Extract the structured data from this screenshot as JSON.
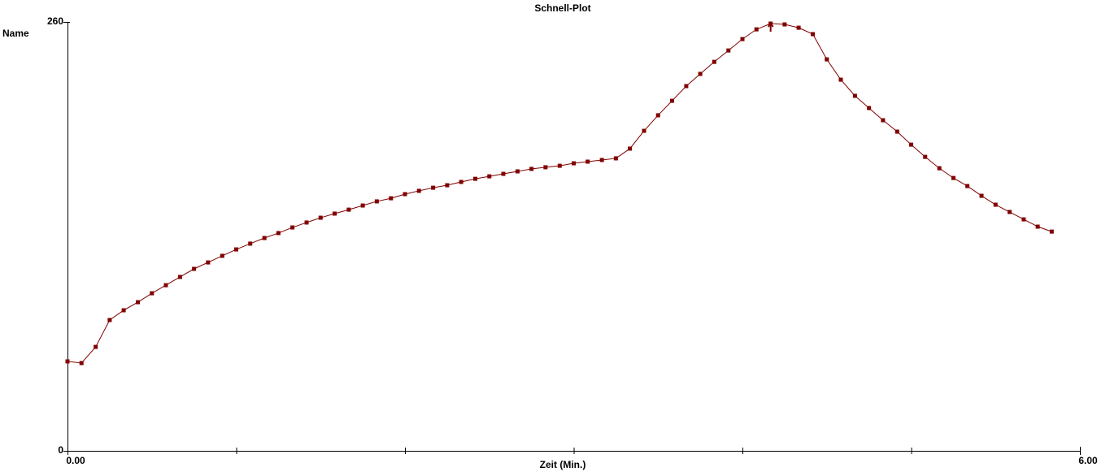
{
  "chart_data": {
    "type": "line",
    "title": "Schnell-Plot",
    "ylabel": "Name",
    "xlabel": "Zeit (Min.)",
    "xlim": [
      0,
      6
    ],
    "ylim": [
      0,
      260
    ],
    "xticks": [
      {
        "value": 0,
        "label": "0.00"
      },
      {
        "value": 6,
        "label": "6.00"
      }
    ],
    "xminorticks": [
      1,
      2,
      3,
      4,
      5
    ],
    "yticks": [
      0,
      260
    ],
    "x": [
      0,
      0.083,
      0.167,
      0.25,
      0.333,
      0.417,
      0.5,
      0.583,
      0.667,
      0.75,
      0.833,
      0.917,
      1,
      1.083,
      1.167,
      1.25,
      1.333,
      1.417,
      1.5,
      1.583,
      1.667,
      1.75,
      1.833,
      1.917,
      2,
      2.083,
      2.167,
      2.25,
      2.333,
      2.417,
      2.5,
      2.583,
      2.667,
      2.75,
      2.833,
      2.917,
      3,
      3.083,
      3.167,
      3.25,
      3.333,
      3.417,
      3.5,
      3.583,
      3.667,
      3.75,
      3.833,
      3.917,
      4,
      4.083,
      4.167,
      4.25,
      4.333,
      4.417,
      4.5,
      4.583,
      4.667,
      4.75,
      4.833,
      4.917,
      5,
      5.083,
      5.167,
      5.25,
      5.333,
      5.417,
      5.5,
      5.583,
      5.667,
      5.75,
      5.833
    ],
    "series": [
      {
        "color": "#800000",
        "values": [
          54.2,
          53.2,
          63,
          79.3,
          85.2,
          90.1,
          95.5,
          100.4,
          105.4,
          110.3,
          114.2,
          118.2,
          122.1,
          125.6,
          129,
          132,
          135.4,
          138.4,
          141.3,
          143.8,
          146.2,
          148.7,
          151.2,
          153.1,
          155.6,
          157.6,
          159.5,
          161,
          163,
          164.9,
          166.4,
          167.9,
          169.4,
          170.9,
          171.9,
          172.8,
          174.3,
          175.3,
          176.3,
          177.3,
          183.2,
          194,
          203.4,
          212.2,
          221.1,
          228.5,
          235.8,
          242.7,
          249.6,
          255.5,
          259,
          258.5,
          256.5,
          252.6,
          237.3,
          225,
          215.2,
          207.8,
          200.4,
          193.5,
          185.6,
          178.2,
          171.3,
          165.4,
          160.5,
          154.6,
          149.2,
          144.8,
          140.3,
          135.9,
          132.9
        ]
      }
    ]
  }
}
